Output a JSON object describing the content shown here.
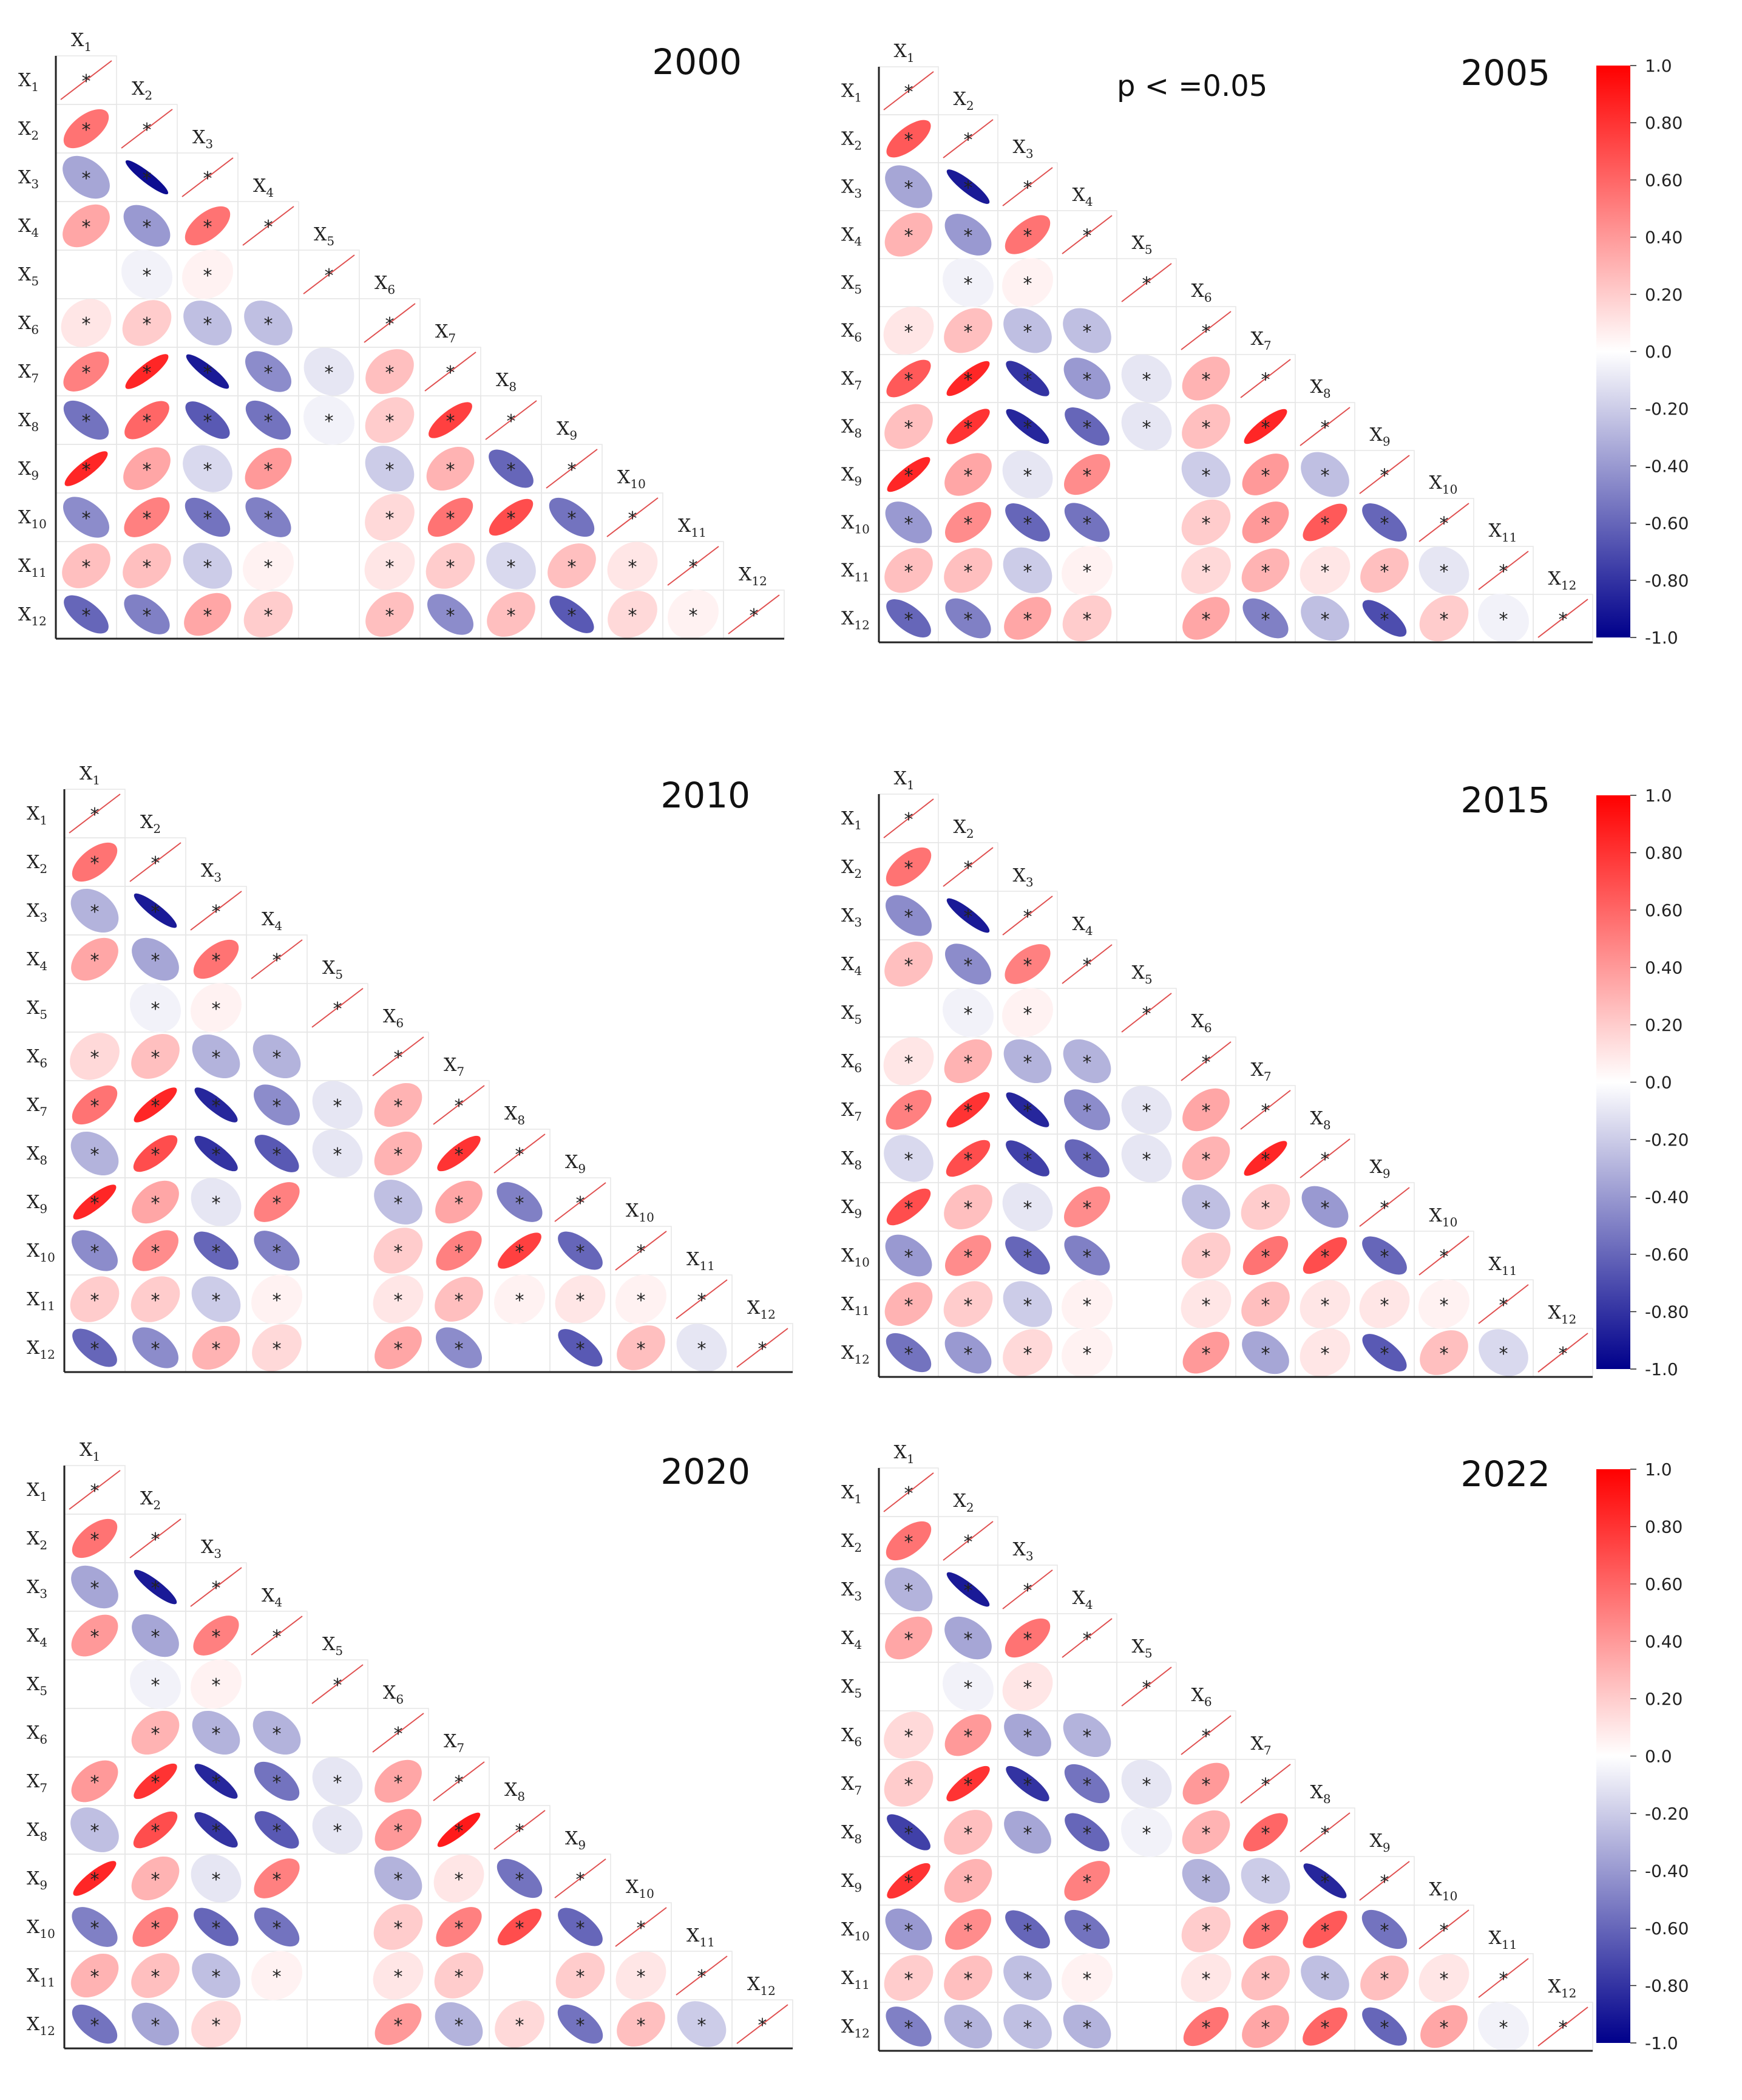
{
  "significance_note": "p < =0.05",
  "colors": {
    "positive": "#ff0000",
    "neutral": "#ffffff",
    "negative": "#00008b",
    "grid": "#e6e6e6",
    "axis": "#222222",
    "diagonal": "#e05050"
  },
  "chart_data": [
    {
      "type": "heatmap",
      "title": "2000",
      "variables": [
        "X1",
        "X2",
        "X3",
        "X4",
        "X5",
        "X6",
        "X7",
        "X8",
        "X9",
        "X10",
        "X11",
        "X12"
      ],
      "correlations": [
        [
          1
        ],
        [
          0.55,
          1
        ],
        [
          -0.35,
          -0.95,
          1
        ],
        [
          0.35,
          -0.4,
          0.55,
          1
        ],
        [
          0.0,
          -0.05,
          0.05,
          0.0,
          1
        ],
        [
          0.1,
          0.2,
          -0.25,
          -0.25,
          0.0,
          1
        ],
        [
          0.5,
          0.85,
          -0.9,
          -0.45,
          -0.1,
          0.25,
          1
        ],
        [
          -0.55,
          0.6,
          -0.65,
          -0.55,
          -0.05,
          0.2,
          0.75,
          1
        ],
        [
          0.85,
          0.35,
          -0.15,
          0.4,
          0.0,
          -0.2,
          0.3,
          -0.6,
          1
        ],
        [
          -0.45,
          0.5,
          -0.55,
          -0.5,
          0.0,
          0.15,
          0.55,
          0.7,
          -0.55,
          1
        ],
        [
          0.25,
          0.25,
          -0.2,
          0.05,
          0.0,
          0.1,
          0.2,
          -0.15,
          0.25,
          0.1,
          1
        ],
        [
          -0.6,
          -0.5,
          0.35,
          0.2,
          0.0,
          0.25,
          -0.45,
          0.25,
          -0.65,
          0.15,
          0.05,
          1
        ]
      ],
      "legend": "none"
    },
    {
      "type": "heatmap",
      "title": "2005",
      "variables": [
        "X1",
        "X2",
        "X3",
        "X4",
        "X5",
        "X6",
        "X7",
        "X8",
        "X9",
        "X10",
        "X11",
        "X12"
      ],
      "correlations": [
        [
          1
        ],
        [
          0.65,
          1
        ],
        [
          -0.35,
          -0.9,
          1
        ],
        [
          0.3,
          -0.4,
          0.55,
          1
        ],
        [
          0.0,
          -0.05,
          0.05,
          0.0,
          1
        ],
        [
          0.1,
          0.25,
          -0.25,
          -0.25,
          0.0,
          1
        ],
        [
          0.65,
          0.85,
          -0.8,
          -0.4,
          -0.1,
          0.3,
          1
        ],
        [
          0.25,
          0.8,
          -0.85,
          -0.6,
          -0.1,
          0.25,
          0.85,
          1
        ],
        [
          0.85,
          0.35,
          -0.1,
          0.45,
          0.0,
          -0.2,
          0.4,
          -0.25,
          1
        ],
        [
          -0.4,
          0.45,
          -0.6,
          -0.55,
          0.0,
          0.2,
          0.4,
          0.65,
          -0.6,
          1
        ],
        [
          0.25,
          0.25,
          -0.2,
          0.05,
          0.0,
          0.15,
          0.3,
          0.1,
          0.25,
          -0.1,
          1
        ],
        [
          -0.6,
          -0.5,
          0.35,
          0.2,
          0.0,
          0.35,
          -0.5,
          -0.25,
          -0.7,
          0.2,
          -0.05,
          1
        ]
      ],
      "colorbar": {
        "ticks": [
          "1.0",
          "0.80",
          "0.60",
          "0.40",
          "0.20",
          "0.0",
          "-0.20",
          "-0.40",
          "-0.60",
          "-0.80",
          "-1.0"
        ]
      }
    },
    {
      "type": "heatmap",
      "title": "2010",
      "variables": [
        "X1",
        "X2",
        "X3",
        "X4",
        "X5",
        "X6",
        "X7",
        "X8",
        "X9",
        "X10",
        "X11",
        "X12"
      ],
      "correlations": [
        [
          1
        ],
        [
          0.55,
          1
        ],
        [
          -0.3,
          -0.9,
          1
        ],
        [
          0.35,
          -0.35,
          0.55,
          1
        ],
        [
          0.0,
          -0.05,
          0.05,
          0.0,
          1
        ],
        [
          0.15,
          0.25,
          -0.3,
          -0.3,
          0.0,
          1
        ],
        [
          0.55,
          0.85,
          -0.85,
          -0.45,
          -0.1,
          0.3,
          1
        ],
        [
          -0.3,
          0.7,
          -0.8,
          -0.65,
          -0.1,
          0.3,
          0.8,
          1
        ],
        [
          0.85,
          0.35,
          -0.1,
          0.5,
          0.0,
          -0.25,
          0.35,
          -0.5,
          1
        ],
        [
          -0.45,
          0.45,
          -0.6,
          -0.5,
          0.0,
          0.2,
          0.5,
          0.75,
          -0.6,
          1
        ],
        [
          0.2,
          0.2,
          -0.2,
          0.05,
          0.0,
          0.1,
          0.25,
          0.05,
          0.1,
          0.05,
          1
        ],
        [
          -0.6,
          -0.45,
          0.3,
          0.15,
          0.0,
          0.35,
          -0.45,
          0.0,
          -0.65,
          0.25,
          -0.1,
          1
        ]
      ],
      "legend": "none"
    },
    {
      "type": "heatmap",
      "title": "2015",
      "variables": [
        "X1",
        "X2",
        "X3",
        "X4",
        "X5",
        "X6",
        "X7",
        "X8",
        "X9",
        "X10",
        "X11",
        "X12"
      ],
      "correlations": [
        [
          1
        ],
        [
          0.55,
          1
        ],
        [
          -0.45,
          -0.9,
          1
        ],
        [
          0.25,
          -0.45,
          0.5,
          1
        ],
        [
          0.0,
          -0.05,
          0.05,
          0.0,
          1
        ],
        [
          0.1,
          0.3,
          -0.3,
          -0.3,
          0.0,
          1
        ],
        [
          0.5,
          0.8,
          -0.85,
          -0.45,
          -0.1,
          0.35,
          1
        ],
        [
          -0.15,
          0.7,
          -0.75,
          -0.6,
          -0.1,
          0.3,
          0.85,
          1
        ],
        [
          0.7,
          0.25,
          -0.1,
          0.45,
          0.0,
          -0.25,
          0.2,
          -0.4,
          1
        ],
        [
          -0.4,
          0.45,
          -0.6,
          -0.5,
          0.0,
          0.2,
          0.55,
          0.7,
          -0.6,
          1
        ],
        [
          0.3,
          0.2,
          -0.2,
          0.05,
          0.0,
          0.1,
          0.25,
          0.1,
          0.1,
          0.05,
          1
        ],
        [
          -0.55,
          -0.4,
          0.15,
          0.05,
          0.0,
          0.4,
          -0.35,
          0.1,
          -0.65,
          0.25,
          -0.15,
          1
        ]
      ],
      "colorbar": {
        "ticks": [
          "1.0",
          "0.80",
          "0.60",
          "0.40",
          "0.20",
          "0.0",
          "-0.20",
          "-0.40",
          "-0.60",
          "-0.80",
          "-1.0"
        ]
      }
    },
    {
      "type": "heatmap",
      "title": "2020",
      "variables": [
        "X1",
        "X2",
        "X3",
        "X4",
        "X5",
        "X6",
        "X7",
        "X8",
        "X9",
        "X10",
        "X11",
        "X12"
      ],
      "correlations": [
        [
          1
        ],
        [
          0.55,
          1
        ],
        [
          -0.35,
          -0.9,
          1
        ],
        [
          0.4,
          -0.35,
          0.5,
          1
        ],
        [
          0.0,
          -0.05,
          0.05,
          0.0,
          1
        ],
        [
          0.0,
          0.3,
          -0.3,
          -0.3,
          0.0,
          1
        ],
        [
          0.4,
          0.8,
          -0.85,
          -0.55,
          -0.1,
          0.35,
          1
        ],
        [
          -0.25,
          0.7,
          -0.8,
          -0.65,
          -0.1,
          0.4,
          0.9,
          1
        ],
        [
          0.85,
          0.3,
          -0.1,
          0.5,
          0.0,
          -0.3,
          0.1,
          -0.55,
          1
        ],
        [
          -0.5,
          0.5,
          -0.6,
          -0.55,
          0.0,
          0.2,
          0.5,
          0.7,
          -0.6,
          1
        ],
        [
          0.3,
          0.25,
          -0.25,
          0.05,
          0.0,
          0.1,
          0.2,
          0.0,
          0.2,
          0.1,
          1
        ],
        [
          -0.55,
          -0.35,
          0.15,
          0.0,
          0.0,
          0.4,
          -0.3,
          0.15,
          -0.55,
          0.25,
          -0.2,
          1
        ]
      ],
      "legend": "none"
    },
    {
      "type": "heatmap",
      "title": "2022",
      "variables": [
        "X1",
        "X2",
        "X3",
        "X4",
        "X5",
        "X6",
        "X7",
        "X8",
        "X9",
        "X10",
        "X11",
        "X12"
      ],
      "correlations": [
        [
          1
        ],
        [
          0.55,
          1
        ],
        [
          -0.3,
          -0.9,
          1
        ],
        [
          0.35,
          -0.35,
          0.55,
          1
        ],
        [
          0.0,
          -0.05,
          0.1,
          0.0,
          1
        ],
        [
          0.15,
          0.4,
          -0.35,
          -0.3,
          0.0,
          1
        ],
        [
          0.2,
          0.8,
          -0.8,
          -0.55,
          -0.1,
          0.4,
          1
        ],
        [
          -0.75,
          0.25,
          -0.35,
          -0.6,
          -0.05,
          0.3,
          0.6,
          1
        ],
        [
          0.8,
          0.3,
          0.0,
          0.5,
          0.0,
          -0.3,
          -0.2,
          -0.85,
          1
        ],
        [
          -0.4,
          0.45,
          -0.6,
          -0.55,
          0.0,
          0.2,
          0.55,
          0.65,
          -0.55,
          1
        ],
        [
          0.2,
          0.25,
          -0.25,
          0.05,
          0.0,
          0.1,
          0.25,
          -0.25,
          0.25,
          0.1,
          1
        ],
        [
          -0.5,
          -0.3,
          -0.25,
          -0.3,
          0.0,
          0.55,
          0.35,
          0.6,
          -0.6,
          0.35,
          -0.05,
          1
        ]
      ],
      "colorbar": {
        "ticks": [
          "1.0",
          "0.80",
          "0.60",
          "0.40",
          "0.20",
          "0.0",
          "-0.20",
          "-0.40",
          "-0.60",
          "-0.80",
          "-1.0"
        ]
      }
    }
  ]
}
